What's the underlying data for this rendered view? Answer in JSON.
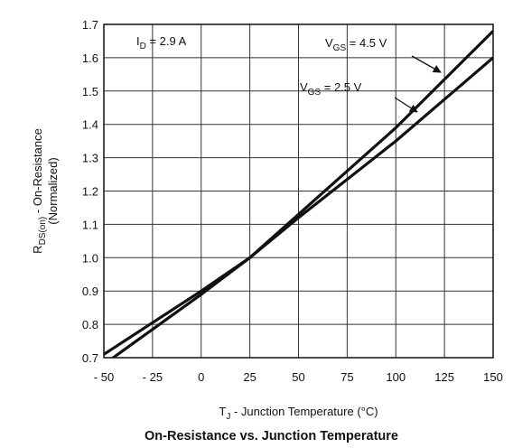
{
  "chart_data": {
    "type": "line",
    "title": "On-Resistance vs. Junction Temperature",
    "xlabel": "T_J - Junction Temperature (°C)",
    "ylabel": "R_DS(on) - On-Resistance (Normalized)",
    "xlim": [
      -50,
      150
    ],
    "ylim": [
      0.7,
      1.7
    ],
    "xticks": [
      -50,
      -25,
      0,
      25,
      50,
      75,
      100,
      125,
      150
    ],
    "yticks": [
      0.7,
      0.8,
      0.9,
      1.0,
      1.1,
      1.2,
      1.3,
      1.4,
      1.5,
      1.6,
      1.7
    ],
    "grid": true,
    "condition": "I_D = 2.9 A",
    "series": [
      {
        "name": "V_GS = 4.5 V",
        "x": [
          -50,
          0,
          25,
          50,
          100,
          150
        ],
        "y": [
          0.68,
          0.89,
          1.0,
          1.13,
          1.39,
          1.68
        ]
      },
      {
        "name": "V_GS = 2.5 V",
        "x": [
          -50,
          0,
          25,
          50,
          100,
          150
        ],
        "y": [
          0.71,
          0.9,
          1.0,
          1.12,
          1.35,
          1.6
        ]
      }
    ]
  }
}
